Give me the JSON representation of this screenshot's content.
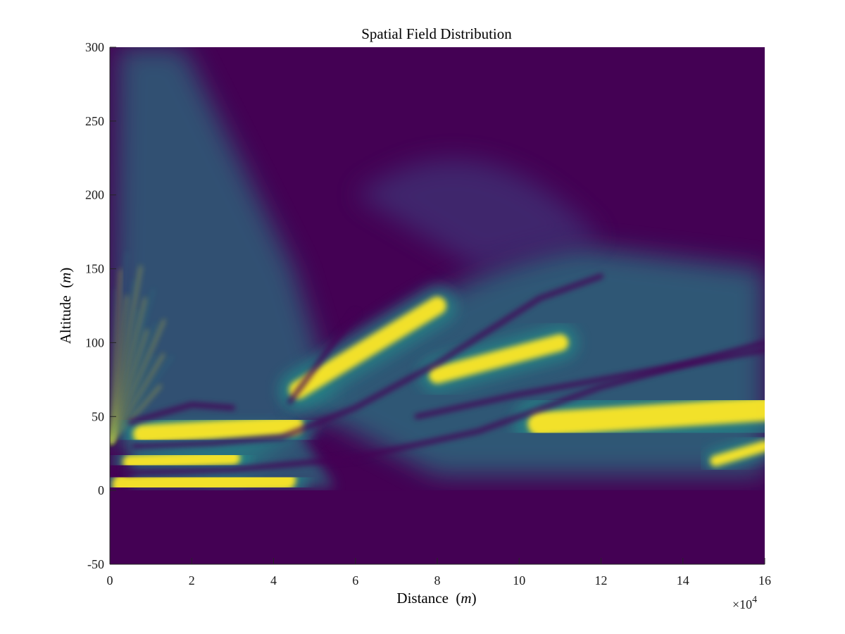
{
  "chart_data": {
    "type": "heatmap",
    "title": "Spatial Field Distribution",
    "xlabel_text": "Distance",
    "xlabel_unit": "m",
    "ylabel_text": "Altitude",
    "ylabel_unit": "m",
    "xlim": [
      0,
      16
    ],
    "ylim": [
      -50,
      300
    ],
    "x_scale_label": "×10",
    "x_scale_exponent": "4",
    "x_ticks": [
      0,
      2,
      4,
      6,
      8,
      10,
      12,
      14,
      16
    ],
    "x_tick_labels": [
      "0",
      "2",
      "4",
      "6",
      "8",
      "10",
      "12",
      "14",
      "16"
    ],
    "y_ticks": [
      -50,
      0,
      50,
      100,
      150,
      200,
      250,
      300
    ],
    "y_tick_labels": [
      "-50",
      "0",
      "50",
      "100",
      "150",
      "200",
      "250",
      "300"
    ],
    "colormap": "viridis",
    "colors": {
      "low": "#440154",
      "mid": "#21918c",
      "high": "#fde725"
    },
    "source_altitude": 32,
    "ground_altitude": 0,
    "ground_value": 0,
    "high_intensity_lobes": [
      {
        "x": [
          0.3,
          4.3
        ],
        "y": [
          4,
          7
        ]
      },
      {
        "x": [
          0.5,
          3.0
        ],
        "y": [
          19,
          22
        ]
      },
      {
        "x": [
          0.8,
          4.5
        ],
        "y": [
          38,
          44
        ]
      },
      {
        "x": [
          4.6,
          8.0
        ],
        "y": [
          68,
          125
        ]
      },
      {
        "x": [
          8.0,
          11.0
        ],
        "y": [
          78,
          100
        ]
      },
      {
        "x": [
          10.5,
          16.0
        ],
        "y": [
          45,
          55
        ]
      },
      {
        "x": [
          14.8,
          16.0
        ],
        "y": [
          20,
          30
        ]
      }
    ]
  }
}
